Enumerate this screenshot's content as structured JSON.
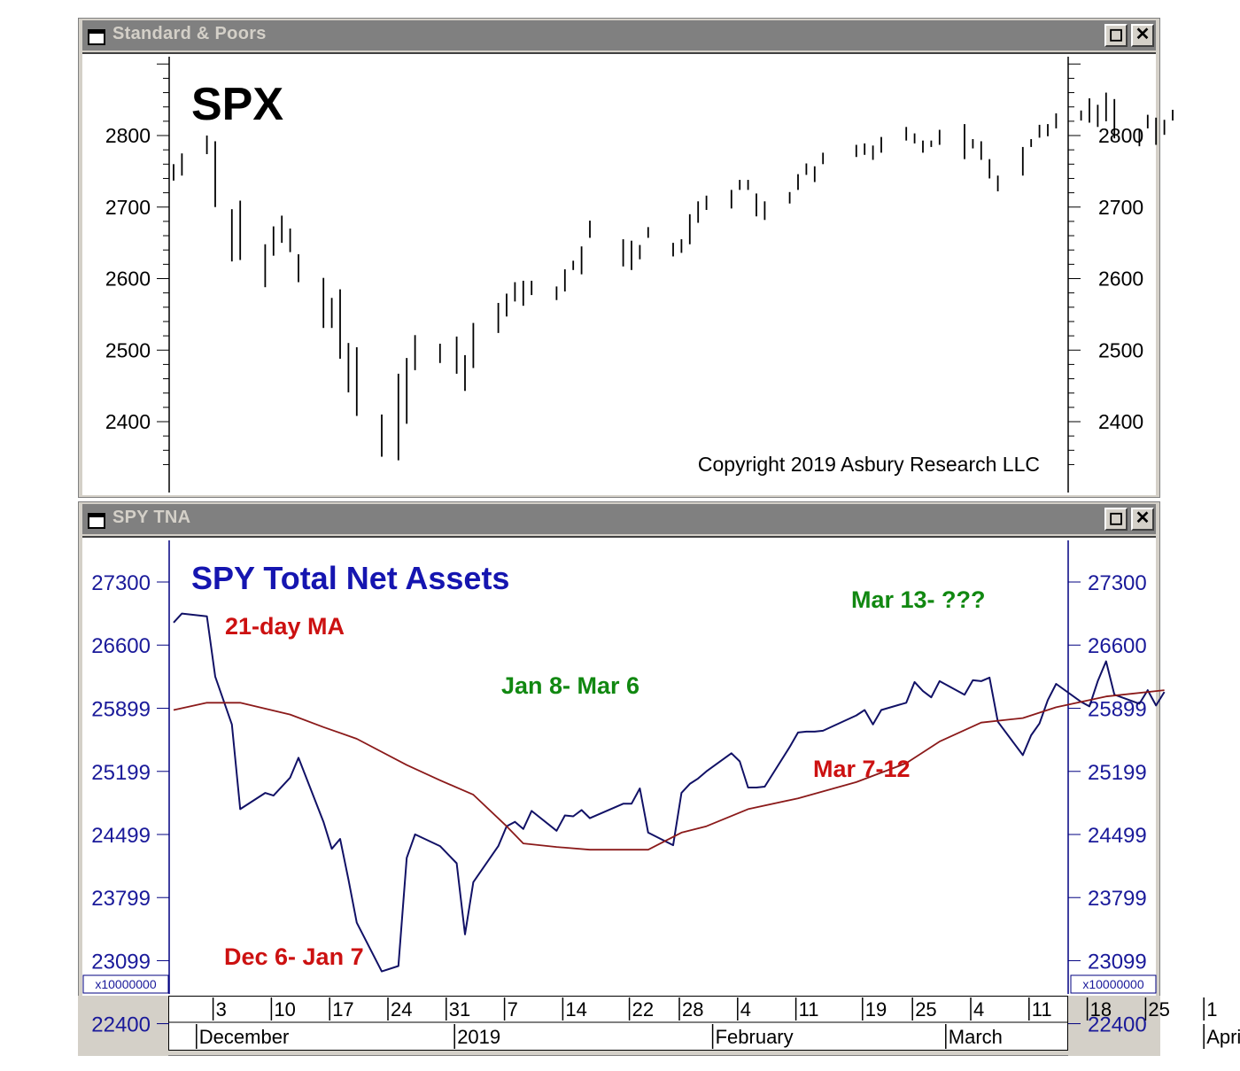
{
  "windows": [
    {
      "title": "Standard & Poors",
      "restore_icon": "restore-icon",
      "close_icon": "close-icon"
    },
    {
      "title": "SPY TNA",
      "restore_icon": "restore-icon",
      "close_icon": "close-icon"
    }
  ],
  "x_axis": {
    "day_labels": [
      "3",
      "10",
      "17",
      "24",
      "31",
      "7",
      "14",
      "22",
      "28",
      "4",
      "11",
      "19",
      "25",
      "4",
      "11",
      "18",
      "25",
      "1"
    ],
    "month_labels": [
      "December",
      "2019",
      "February",
      "March",
      "April"
    ]
  },
  "chart_data": [
    {
      "type": "ohlc",
      "title": "SPX",
      "annotation": "Copyright 2019 Asbury Research LLC",
      "y_ticks": [
        2800,
        2700,
        2600,
        2500,
        2400
      ],
      "ylim": [
        2330,
        2940
      ],
      "x_start": "2018-11-29",
      "bars": [
        {
          "date": "2018-11-29",
          "high": 2760,
          "low": 2737
        },
        {
          "date": "2018-11-30",
          "high": 2775,
          "low": 2744
        },
        {
          "date": "2018-12-03",
          "high": 2800,
          "low": 2774
        },
        {
          "date": "2018-12-04",
          "high": 2792,
          "low": 2700
        },
        {
          "date": "2018-12-06",
          "high": 2697,
          "low": 2624
        },
        {
          "date": "2018-12-07",
          "high": 2709,
          "low": 2626
        },
        {
          "date": "2018-12-10",
          "high": 2648,
          "low": 2588
        },
        {
          "date": "2018-12-11",
          "high": 2673,
          "low": 2632
        },
        {
          "date": "2018-12-12",
          "high": 2688,
          "low": 2650
        },
        {
          "date": "2018-12-13",
          "high": 2670,
          "low": 2637
        },
        {
          "date": "2018-12-14",
          "high": 2634,
          "low": 2595
        },
        {
          "date": "2018-12-17",
          "high": 2601,
          "low": 2531
        },
        {
          "date": "2018-12-18",
          "high": 2573,
          "low": 2531
        },
        {
          "date": "2018-12-19",
          "high": 2585,
          "low": 2488
        },
        {
          "date": "2018-12-20",
          "high": 2510,
          "low": 2441
        },
        {
          "date": "2018-12-21",
          "high": 2504,
          "low": 2408
        },
        {
          "date": "2018-12-24",
          "high": 2410,
          "low": 2351
        },
        {
          "date": "2018-12-26",
          "high": 2467,
          "low": 2346
        },
        {
          "date": "2018-12-27",
          "high": 2489,
          "low": 2397
        },
        {
          "date": "2018-12-28",
          "high": 2521,
          "low": 2472
        },
        {
          "date": "2018-12-31",
          "high": 2509,
          "low": 2482
        },
        {
          "date": "2019-01-02",
          "high": 2519,
          "low": 2467
        },
        {
          "date": "2019-01-03",
          "high": 2493,
          "low": 2443
        },
        {
          "date": "2019-01-04",
          "high": 2538,
          "low": 2475
        },
        {
          "date": "2019-01-07",
          "high": 2566,
          "low": 2524
        },
        {
          "date": "2019-01-08",
          "high": 2579,
          "low": 2547
        },
        {
          "date": "2019-01-09",
          "high": 2595,
          "low": 2568
        },
        {
          "date": "2019-01-10",
          "high": 2597,
          "low": 2562
        },
        {
          "date": "2019-01-11",
          "high": 2597,
          "low": 2577
        },
        {
          "date": "2019-01-14",
          "high": 2589,
          "low": 2570
        },
        {
          "date": "2019-01-15",
          "high": 2613,
          "low": 2582
        },
        {
          "date": "2019-01-16",
          "high": 2625,
          "low": 2612
        },
        {
          "date": "2019-01-17",
          "high": 2645,
          "low": 2606
        },
        {
          "date": "2019-01-18",
          "high": 2681,
          "low": 2657
        },
        {
          "date": "2019-01-22",
          "high": 2655,
          "low": 2617
        },
        {
          "date": "2019-01-23",
          "high": 2653,
          "low": 2612
        },
        {
          "date": "2019-01-24",
          "high": 2647,
          "low": 2627
        },
        {
          "date": "2019-01-25",
          "high": 2672,
          "low": 2657
        },
        {
          "date": "2019-01-28",
          "high": 2650,
          "low": 2631
        },
        {
          "date": "2019-01-29",
          "high": 2655,
          "low": 2636
        },
        {
          "date": "2019-01-30",
          "high": 2690,
          "low": 2648
        },
        {
          "date": "2019-01-31",
          "high": 2708,
          "low": 2678
        },
        {
          "date": "2019-02-01",
          "high": 2716,
          "low": 2696
        },
        {
          "date": "2019-02-04",
          "high": 2724,
          "low": 2698
        },
        {
          "date": "2019-02-05",
          "high": 2738,
          "low": 2724
        },
        {
          "date": "2019-02-06",
          "high": 2738,
          "low": 2724
        },
        {
          "date": "2019-02-07",
          "high": 2719,
          "low": 2687
        },
        {
          "date": "2019-02-08",
          "high": 2708,
          "low": 2682
        },
        {
          "date": "2019-02-11",
          "high": 2721,
          "low": 2705
        },
        {
          "date": "2019-02-12",
          "high": 2746,
          "low": 2724
        },
        {
          "date": "2019-02-13",
          "high": 2761,
          "low": 2745
        },
        {
          "date": "2019-02-14",
          "high": 2757,
          "low": 2735
        },
        {
          "date": "2019-02-15",
          "high": 2776,
          "low": 2760
        },
        {
          "date": "2019-02-19",
          "high": 2787,
          "low": 2770
        },
        {
          "date": "2019-02-20",
          "high": 2789,
          "low": 2773
        },
        {
          "date": "2019-02-21",
          "high": 2786,
          "low": 2766
        },
        {
          "date": "2019-02-22",
          "high": 2798,
          "low": 2776
        },
        {
          "date": "2019-02-25",
          "high": 2812,
          "low": 2793
        },
        {
          "date": "2019-02-26",
          "high": 2803,
          "low": 2789
        },
        {
          "date": "2019-02-27",
          "high": 2793,
          "low": 2776
        },
        {
          "date": "2019-02-28",
          "high": 2793,
          "low": 2784
        },
        {
          "date": "2019-03-01",
          "high": 2808,
          "low": 2787
        },
        {
          "date": "2019-03-04",
          "high": 2816,
          "low": 2767
        },
        {
          "date": "2019-03-05",
          "high": 2795,
          "low": 2782
        },
        {
          "date": "2019-03-06",
          "high": 2792,
          "low": 2766
        },
        {
          "date": "2019-03-07",
          "high": 2767,
          "low": 2740
        },
        {
          "date": "2019-03-08",
          "high": 2744,
          "low": 2722
        },
        {
          "date": "2019-03-11",
          "high": 2784,
          "low": 2744
        },
        {
          "date": "2019-03-12",
          "high": 2795,
          "low": 2784
        },
        {
          "date": "2019-03-13",
          "high": 2815,
          "low": 2797
        },
        {
          "date": "2019-03-14",
          "high": 2816,
          "low": 2799
        },
        {
          "date": "2019-03-15",
          "high": 2831,
          "low": 2810
        },
        {
          "date": "2019-03-18",
          "high": 2835,
          "low": 2821
        },
        {
          "date": "2019-03-19",
          "high": 2852,
          "low": 2818
        },
        {
          "date": "2019-03-20",
          "high": 2843,
          "low": 2812
        },
        {
          "date": "2019-03-21",
          "high": 2860,
          "low": 2820
        },
        {
          "date": "2019-03-22",
          "high": 2851,
          "low": 2796
        },
        {
          "date": "2019-03-25",
          "high": 2809,
          "low": 2785
        },
        {
          "date": "2019-03-26",
          "high": 2829,
          "low": 2810
        },
        {
          "date": "2019-03-27",
          "high": 2825,
          "low": 2787
        },
        {
          "date": "2019-03-28",
          "high": 2822,
          "low": 2801
        },
        {
          "date": "2019-03-29",
          "high": 2836,
          "low": 2821
        }
      ]
    },
    {
      "type": "line",
      "title": "SPY Total Net Assets",
      "unit_label": "x10000000",
      "y_ticks": [
        27300,
        26600,
        25899,
        25199,
        24499,
        23799,
        23099,
        22400
      ],
      "ylim": [
        22230,
        27590
      ],
      "annotations": [
        {
          "text": "21-day MA",
          "color": "#cc1111"
        },
        {
          "text": "Jan 8- Mar 6",
          "color": "#118811"
        },
        {
          "text": "Mar 13- ???",
          "color": "#118811"
        },
        {
          "text": "Mar 7-12",
          "color": "#cc1111"
        },
        {
          "text": "Dec 6- Jan 7",
          "color": "#cc1111"
        }
      ],
      "series": [
        {
          "name": "SPY TNA",
          "color": "#111166",
          "points": [
            [
              "2018-11-29",
              26850
            ],
            [
              "2018-11-30",
              26950
            ],
            [
              "2018-12-03",
              26920
            ],
            [
              "2018-12-04",
              26250
            ],
            [
              "2018-12-06",
              25720
            ],
            [
              "2018-12-07",
              24780
            ],
            [
              "2018-12-10",
              24960
            ],
            [
              "2018-12-11",
              24930
            ],
            [
              "2018-12-13",
              25130
            ],
            [
              "2018-12-14",
              25350
            ],
            [
              "2018-12-17",
              24640
            ],
            [
              "2018-12-18",
              24340
            ],
            [
              "2018-12-19",
              24450
            ],
            [
              "2018-12-20",
              24000
            ],
            [
              "2018-12-21",
              23520
            ],
            [
              "2018-12-24",
              22980
            ],
            [
              "2018-12-26",
              23040
            ],
            [
              "2018-12-27",
              24240
            ],
            [
              "2018-12-28",
              24500
            ],
            [
              "2018-12-31",
              24370
            ],
            [
              "2019-01-02",
              24180
            ],
            [
              "2019-01-03",
              23390
            ],
            [
              "2019-01-04",
              23970
            ],
            [
              "2019-01-07",
              24370
            ],
            [
              "2019-01-08",
              24590
            ],
            [
              "2019-01-09",
              24640
            ],
            [
              "2019-01-10",
              24560
            ],
            [
              "2019-01-11",
              24760
            ],
            [
              "2019-01-14",
              24540
            ],
            [
              "2019-01-15",
              24710
            ],
            [
              "2019-01-16",
              24700
            ],
            [
              "2019-01-17",
              24770
            ],
            [
              "2019-01-18",
              24680
            ],
            [
              "2019-01-22",
              24840
            ],
            [
              "2019-01-23",
              24840
            ],
            [
              "2019-01-24",
              25010
            ],
            [
              "2019-01-25",
              24520
            ],
            [
              "2019-01-28",
              24380
            ],
            [
              "2019-01-29",
              24960
            ],
            [
              "2019-01-30",
              25060
            ],
            [
              "2019-01-31",
              25120
            ],
            [
              "2019-02-01",
              25200
            ],
            [
              "2019-02-04",
              25400
            ],
            [
              "2019-02-05",
              25310
            ],
            [
              "2019-02-06",
              25020
            ],
            [
              "2019-02-07",
              25020
            ],
            [
              "2019-02-08",
              25030
            ],
            [
              "2019-02-11",
              25470
            ],
            [
              "2019-02-12",
              25630
            ],
            [
              "2019-02-13",
              25640
            ],
            [
              "2019-02-14",
              25640
            ],
            [
              "2019-02-15",
              25650
            ],
            [
              "2019-02-19",
              25820
            ],
            [
              "2019-02-20",
              25880
            ],
            [
              "2019-02-21",
              25720
            ],
            [
              "2019-02-22",
              25880
            ],
            [
              "2019-02-25",
              25960
            ],
            [
              "2019-02-26",
              26190
            ],
            [
              "2019-02-27",
              26090
            ],
            [
              "2019-02-28",
              26020
            ],
            [
              "2019-03-01",
              26200
            ],
            [
              "2019-03-04",
              26050
            ],
            [
              "2019-03-05",
              26210
            ],
            [
              "2019-03-06",
              26200
            ],
            [
              "2019-03-07",
              26240
            ],
            [
              "2019-03-08",
              25750
            ],
            [
              "2019-03-11",
              25380
            ],
            [
              "2019-03-12",
              25600
            ],
            [
              "2019-03-13",
              25730
            ],
            [
              "2019-03-14",
              25990
            ],
            [
              "2019-03-15",
              26170
            ],
            [
              "2019-03-18",
              25970
            ],
            [
              "2019-03-19",
              25920
            ],
            [
              "2019-03-20",
              26200
            ],
            [
              "2019-03-21",
              26420
            ],
            [
              "2019-03-22",
              26050
            ],
            [
              "2019-03-25",
              25950
            ],
            [
              "2019-03-26",
              26100
            ],
            [
              "2019-03-27",
              25930
            ],
            [
              "2019-03-28",
              26080
            ]
          ]
        },
        {
          "name": "21-day MA",
          "color": "#8b1a1a",
          "points": [
            [
              "2018-11-29",
              25880
            ],
            [
              "2018-12-03",
              25960
            ],
            [
              "2018-12-07",
              25960
            ],
            [
              "2018-12-13",
              25830
            ],
            [
              "2018-12-17",
              25690
            ],
            [
              "2018-12-21",
              25560
            ],
            [
              "2018-12-27",
              25270
            ],
            [
              "2018-12-31",
              25100
            ],
            [
              "2019-01-04",
              24940
            ],
            [
              "2019-01-08",
              24590
            ],
            [
              "2019-01-10",
              24400
            ],
            [
              "2019-01-14",
              24360
            ],
            [
              "2019-01-18",
              24330
            ],
            [
              "2019-01-25",
              24330
            ],
            [
              "2019-01-29",
              24520
            ],
            [
              "2019-02-01",
              24590
            ],
            [
              "2019-02-06",
              24780
            ],
            [
              "2019-02-12",
              24900
            ],
            [
              "2019-02-19",
              25080
            ],
            [
              "2019-02-25",
              25290
            ],
            [
              "2019-03-01",
              25530
            ],
            [
              "2019-03-06",
              25740
            ],
            [
              "2019-03-11",
              25790
            ],
            [
              "2019-03-15",
              25910
            ],
            [
              "2019-03-21",
              26030
            ],
            [
              "2019-03-28",
              26100
            ]
          ]
        }
      ]
    }
  ]
}
